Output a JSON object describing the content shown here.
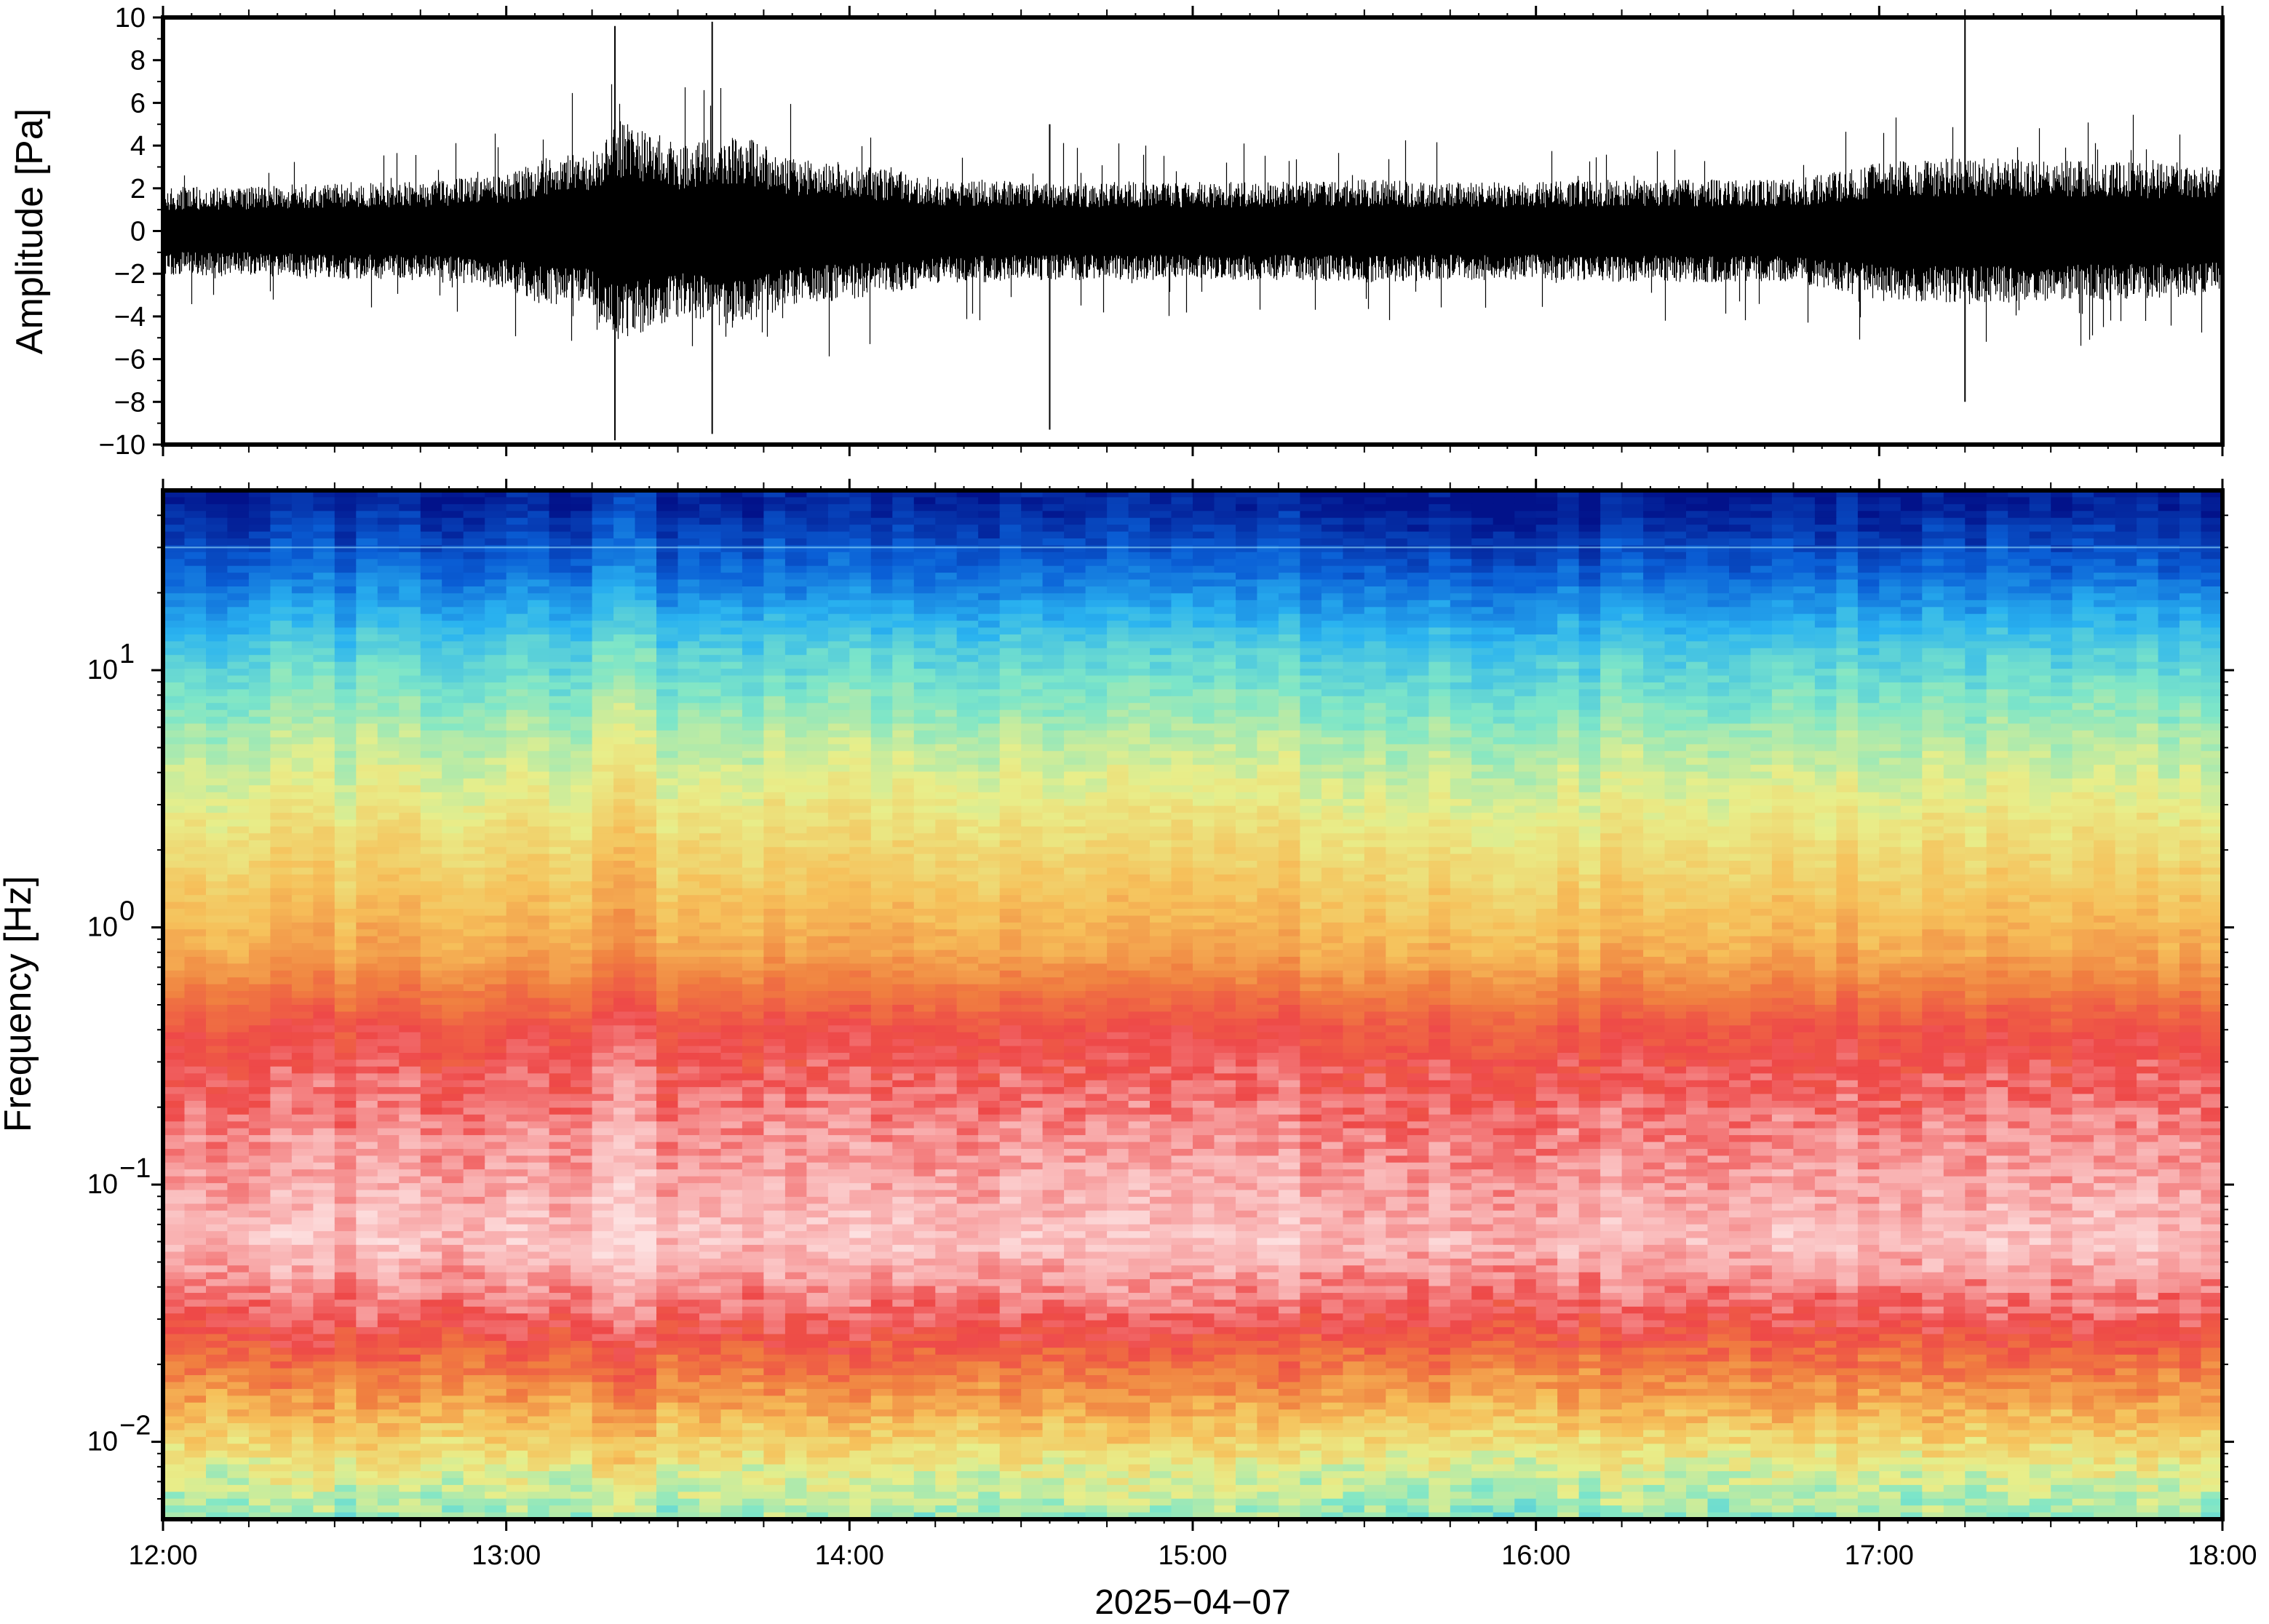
{
  "chart_data": [
    {
      "type": "line",
      "name": "waveform",
      "ylabel": "Amplitude [Pa]",
      "ylim": [
        -10,
        10
      ],
      "yticks": [
        10,
        8,
        6,
        4,
        2,
        0,
        -2,
        -4,
        -6,
        -8,
        -10
      ],
      "ytick_labels": [
        "10",
        "8",
        "6",
        "4",
        "2",
        "0",
        "−2",
        "−4",
        "−6",
        "−8",
        "−10"
      ],
      "xlim": [
        "12:00",
        "18:00"
      ],
      "envelope": {
        "times_hours": [
          12.0,
          12.25,
          12.5,
          12.75,
          13.0,
          13.1,
          13.25,
          13.33,
          13.5,
          13.67,
          13.83,
          14.0,
          14.25,
          14.5,
          14.75,
          15.0,
          15.25,
          15.5,
          15.75,
          16.0,
          16.25,
          16.5,
          16.75,
          17.0,
          17.25,
          17.5,
          17.75,
          18.0
        ],
        "typical_half_range_pa": [
          1.8,
          1.8,
          2.0,
          2.0,
          2.3,
          3.0,
          3.2,
          4.5,
          3.5,
          4.0,
          3.0,
          2.8,
          2.2,
          2.0,
          2.0,
          2.0,
          2.0,
          2.1,
          2.0,
          2.0,
          2.1,
          2.1,
          2.1,
          2.8,
          3.0,
          2.9,
          2.8,
          2.6
        ]
      },
      "peaks": [
        {
          "time": "13:19",
          "max_pa": 9.6,
          "min_pa": -9.8
        },
        {
          "time": "13:36",
          "max_pa": 9.8,
          "min_pa": -9.5
        },
        {
          "time": "17:15",
          "max_pa": 10.0,
          "min_pa": -8.0
        },
        {
          "time": "14:35",
          "max_pa": 5.0,
          "min_pa": -9.3
        }
      ]
    },
    {
      "type": "heatmap",
      "name": "spectrogram",
      "ylabel": "Frequency [Hz]",
      "yscale": "log",
      "ylim_hz": [
        0.005,
        50
      ],
      "yticks_hz": [
        10,
        1,
        0.1,
        0.01
      ],
      "ytick_labels": [
        {
          "base": "10",
          "exp": "1"
        },
        {
          "base": "10",
          "exp": "0"
        },
        {
          "base": "10",
          "exp": "−1"
        },
        {
          "base": "10",
          "exp": "−2"
        }
      ],
      "xlim": [
        "12:00",
        "18:00"
      ],
      "colormap": "blue-cyan-yellow-red-pink (power, low to high)",
      "colormap_stops": [
        "#02128a",
        "#0a5fd6",
        "#2ab3f0",
        "#7ee6c8",
        "#e8ee8a",
        "#f6c05a",
        "#f08040",
        "#ee4848",
        "#f8a8a8",
        "#fde0e0"
      ],
      "profile": [
        {
          "freq_hz": 45,
          "level": 0.02
        },
        {
          "freq_hz": 25,
          "level": 0.12
        },
        {
          "freq_hz": 12,
          "level": 0.28
        },
        {
          "freq_hz": 5,
          "level": 0.4
        },
        {
          "freq_hz": 2,
          "level": 0.5
        },
        {
          "freq_hz": 0.8,
          "level": 0.6
        },
        {
          "freq_hz": 0.4,
          "level": 0.76
        },
        {
          "freq_hz": 0.15,
          "level": 0.86
        },
        {
          "freq_hz": 0.06,
          "level": 0.94
        },
        {
          "freq_hz": 0.03,
          "level": 0.8
        },
        {
          "freq_hz": 0.015,
          "level": 0.62
        },
        {
          "freq_hz": 0.008,
          "level": 0.45
        },
        {
          "freq_hz": 0.005,
          "level": 0.36
        }
      ]
    }
  ],
  "x_axis": {
    "ticks": [
      "12:00",
      "13:00",
      "14:00",
      "15:00",
      "16:00",
      "17:00",
      "18:00"
    ],
    "date_label": "2025−04−07"
  }
}
